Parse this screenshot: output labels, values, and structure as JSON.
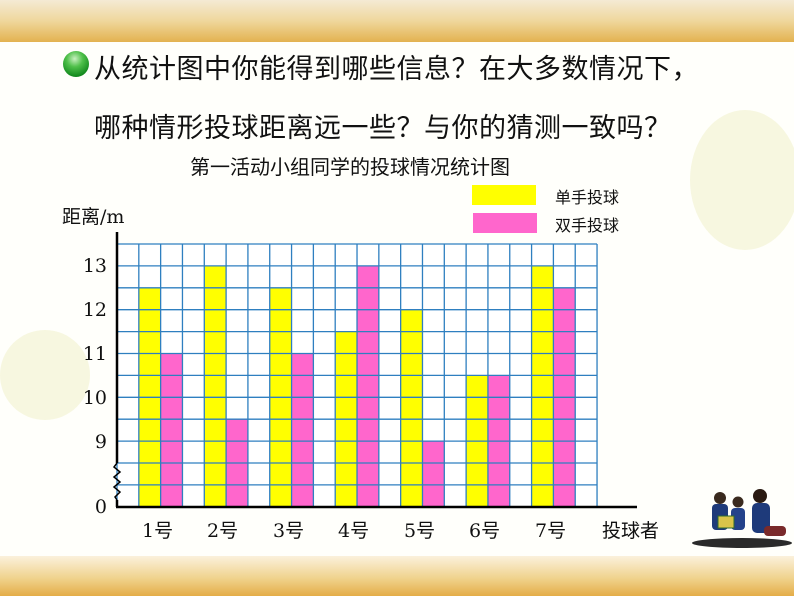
{
  "question": {
    "line1": "从统计图中你能得到哪些信息？在大多数情况下，",
    "line2": "哪种情形投球距离远一些？与你的猜测一致吗？"
  },
  "colors": {
    "single_hand": "#ffff00",
    "double_hand": "#ff66cc",
    "grid": "#2e7fc0",
    "axis": "#000000",
    "top_bar": "#e8be62",
    "bullet": "#1fa22a"
  },
  "chart_data": {
    "type": "bar",
    "title": "第一活动小组同学的投球情况统计图",
    "xlabel": "投球者",
    "ylabel": "距离/m",
    "categories": [
      "1号",
      "2号",
      "3号",
      "4号",
      "5号",
      "6号",
      "7号"
    ],
    "series": [
      {
        "name": "单手投球",
        "color": "#ffff00",
        "values": [
          12.5,
          13,
          12.5,
          11.5,
          12,
          10.5,
          13
        ]
      },
      {
        "name": "双手投球",
        "color": "#ff66cc",
        "values": [
          11,
          9.5,
          11,
          13,
          9,
          10.5,
          12.5
        ]
      }
    ],
    "yticks": [
      0,
      9,
      10,
      11,
      12,
      13
    ],
    "ylim": [
      8,
      13.5
    ],
    "axis_break": true,
    "grid": true,
    "legend_position": "top-right"
  },
  "legend": {
    "items": [
      {
        "label": "单手投球"
      },
      {
        "label": "双手投球"
      }
    ]
  },
  "decor": {
    "image": "children-reading-icon"
  }
}
